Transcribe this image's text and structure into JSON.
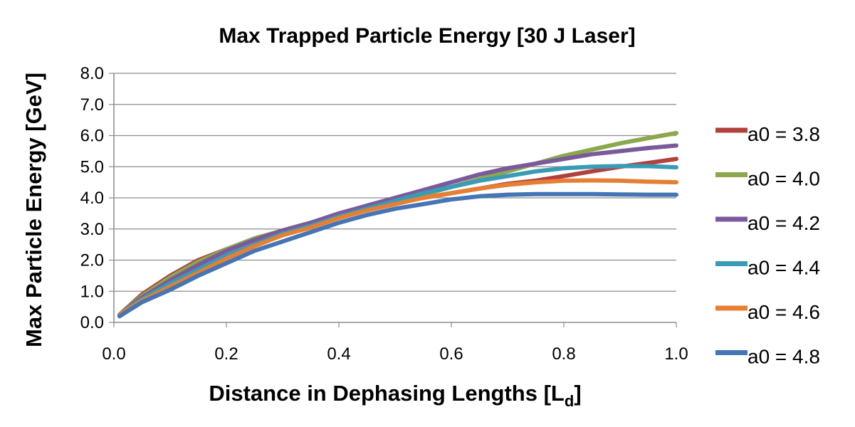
{
  "chart_data": {
    "type": "line",
    "title": "Max Trapped Particle Energy [30 J Laser]",
    "xlabel_main": "Distance in Dephasing Lengths [L",
    "xlabel_sub": "d",
    "xlabel_end": "]",
    "ylabel": "Max Particle Energy [GeV]",
    "xlim": [
      0,
      1
    ],
    "ylim": [
      0,
      8
    ],
    "x_ticks": [
      "0.0",
      "0.2",
      "0.4",
      "0.6",
      "0.8",
      "1.0"
    ],
    "y_ticks": [
      "0.0",
      "1.0",
      "2.0",
      "3.0",
      "4.0",
      "5.0",
      "6.0",
      "7.0",
      "8.0"
    ],
    "grid": true,
    "legend_position": "right",
    "x": [
      0.01,
      0.05,
      0.1,
      0.15,
      0.2,
      0.25,
      0.3,
      0.35,
      0.4,
      0.45,
      0.5,
      0.55,
      0.6,
      0.65,
      0.7,
      0.75,
      0.8,
      0.85,
      0.9,
      0.95,
      1.0
    ],
    "series": [
      {
        "name": "a0 = 3.8",
        "color": "#B0413E",
        "values": [
          0.25,
          0.9,
          1.5,
          2.0,
          2.35,
          2.65,
          2.95,
          3.2,
          3.45,
          3.65,
          3.85,
          4.0,
          4.15,
          4.3,
          4.45,
          4.55,
          4.7,
          4.85,
          5.0,
          5.12,
          5.25
        ]
      },
      {
        "name": "a0 = 4.0",
        "color": "#8CA84D",
        "values": [
          0.25,
          0.85,
          1.45,
          1.95,
          2.35,
          2.7,
          2.95,
          3.2,
          3.45,
          3.7,
          3.9,
          4.1,
          4.35,
          4.6,
          4.85,
          5.1,
          5.35,
          5.55,
          5.75,
          5.92,
          6.08
        ]
      },
      {
        "name": "a0 = 4.2",
        "color": "#7B5A9C",
        "values": [
          0.25,
          0.8,
          1.35,
          1.85,
          2.3,
          2.65,
          2.95,
          3.2,
          3.5,
          3.75,
          4.0,
          4.25,
          4.5,
          4.75,
          4.95,
          5.1,
          5.25,
          5.4,
          5.5,
          5.6,
          5.68
        ]
      },
      {
        "name": "a0 = 4.4",
        "color": "#3A9BB5",
        "values": [
          0.25,
          0.75,
          1.25,
          1.7,
          2.15,
          2.5,
          2.85,
          3.1,
          3.4,
          3.65,
          3.9,
          4.15,
          4.35,
          4.55,
          4.7,
          4.85,
          4.95,
          5.0,
          5.02,
          5.02,
          4.98
        ]
      },
      {
        "name": "a0 = 4.6",
        "color": "#E57F34",
        "values": [
          0.25,
          0.7,
          1.15,
          1.6,
          2.05,
          2.45,
          2.8,
          3.05,
          3.35,
          3.6,
          3.8,
          4.0,
          4.15,
          4.3,
          4.42,
          4.5,
          4.55,
          4.56,
          4.55,
          4.52,
          4.5
        ]
      },
      {
        "name": "a0 = 4.8",
        "color": "#4575B4",
        "values": [
          0.2,
          0.65,
          1.05,
          1.5,
          1.9,
          2.3,
          2.6,
          2.9,
          3.2,
          3.45,
          3.65,
          3.8,
          3.95,
          4.05,
          4.1,
          4.12,
          4.12,
          4.12,
          4.11,
          4.1,
          4.1
        ]
      }
    ]
  }
}
